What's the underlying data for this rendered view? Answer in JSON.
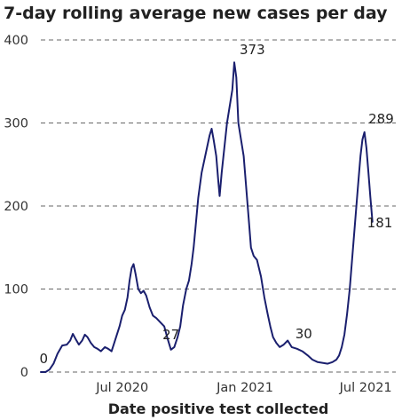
{
  "chart_data": {
    "type": "line",
    "title": "7-day rolling average new cases per day",
    "xlabel": "Date positive test collected",
    "ylabel": "",
    "ylim": [
      0,
      400
    ],
    "xlim": [
      "2020-03-01",
      "2021-08-15"
    ],
    "yticks": [
      0,
      100,
      200,
      300,
      400
    ],
    "xticks": [
      {
        "date": "2020-07-01",
        "label": "Jul 2020"
      },
      {
        "date": "2021-01-01",
        "label": "Jan 2021"
      },
      {
        "date": "2021-07-01",
        "label": "Jul 2021"
      }
    ],
    "grid": true,
    "colors": {
      "line": "#1a1f6e",
      "provisional": "#8a8fb5"
    },
    "annotations": [
      {
        "date": "2020-03-08",
        "value": 0,
        "label": "0"
      },
      {
        "date": "2020-09-12",
        "value": 27,
        "label": "27"
      },
      {
        "date": "2021-03-12",
        "value": 30,
        "label": "30"
      },
      {
        "date": "2021-01-12",
        "value": 373,
        "label": "373"
      },
      {
        "date": "2021-08-01",
        "value": 289,
        "label": "289"
      },
      {
        "date": "2021-08-07",
        "value": 181,
        "label": "181"
      }
    ],
    "series": [
      {
        "values": [
          [
            "2020-03-01",
            0
          ],
          [
            "2020-03-08",
            0
          ],
          [
            "2020-03-14",
            3
          ],
          [
            "2020-03-20",
            10
          ],
          [
            "2020-03-26",
            22
          ],
          [
            "2020-04-02",
            32
          ],
          [
            "2020-04-09",
            33
          ],
          [
            "2020-04-14",
            38
          ],
          [
            "2020-04-18",
            46
          ],
          [
            "2020-04-22",
            40
          ],
          [
            "2020-04-27",
            33
          ],
          [
            "2020-05-02",
            38
          ],
          [
            "2020-05-06",
            45
          ],
          [
            "2020-05-10",
            42
          ],
          [
            "2020-05-15",
            35
          ],
          [
            "2020-05-20",
            30
          ],
          [
            "2020-05-25",
            28
          ],
          [
            "2020-05-30",
            25
          ],
          [
            "2020-06-05",
            30
          ],
          [
            "2020-06-10",
            28
          ],
          [
            "2020-06-15",
            25
          ],
          [
            "2020-06-19",
            35
          ],
          [
            "2020-06-23",
            45
          ],
          [
            "2020-06-27",
            55
          ],
          [
            "2020-07-01",
            68
          ],
          [
            "2020-07-05",
            75
          ],
          [
            "2020-07-09",
            90
          ],
          [
            "2020-07-12",
            110
          ],
          [
            "2020-07-15",
            125
          ],
          [
            "2020-07-18",
            130
          ],
          [
            "2020-07-21",
            118
          ],
          [
            "2020-07-25",
            100
          ],
          [
            "2020-07-29",
            95
          ],
          [
            "2020-08-02",
            98
          ],
          [
            "2020-08-06",
            92
          ],
          [
            "2020-08-11",
            78
          ],
          [
            "2020-08-16",
            68
          ],
          [
            "2020-08-21",
            65
          ],
          [
            "2020-08-27",
            60
          ],
          [
            "2020-09-02",
            55
          ],
          [
            "2020-09-07",
            40
          ],
          [
            "2020-09-12",
            27
          ],
          [
            "2020-09-17",
            30
          ],
          [
            "2020-09-22",
            42
          ],
          [
            "2020-09-26",
            55
          ],
          [
            "2020-09-30",
            80
          ],
          [
            "2020-10-05",
            100
          ],
          [
            "2020-10-09",
            110
          ],
          [
            "2020-10-13",
            130
          ],
          [
            "2020-10-16",
            150
          ],
          [
            "2020-10-19",
            175
          ],
          [
            "2020-10-23",
            210
          ],
          [
            "2020-10-28",
            240
          ],
          [
            "2020-11-01",
            255
          ],
          [
            "2020-11-05",
            270
          ],
          [
            "2020-11-09",
            285
          ],
          [
            "2020-11-12",
            293
          ],
          [
            "2020-11-15",
            280
          ],
          [
            "2020-11-19",
            260
          ],
          [
            "2020-11-22",
            230
          ],
          [
            "2020-11-24",
            212
          ],
          [
            "2020-11-27",
            240
          ],
          [
            "2020-12-01",
            270
          ],
          [
            "2020-12-05",
            300
          ],
          [
            "2020-12-09",
            320
          ],
          [
            "2020-12-13",
            340
          ],
          [
            "2020-12-16",
            373
          ],
          [
            "2020-12-19",
            355
          ],
          [
            "2020-12-22",
            300
          ],
          [
            "2020-12-26",
            280
          ],
          [
            "2020-12-30",
            260
          ],
          [
            "2021-01-03",
            220
          ],
          [
            "2021-01-07",
            180
          ],
          [
            "2021-01-10",
            150
          ],
          [
            "2021-01-14",
            140
          ],
          [
            "2021-01-19",
            135
          ],
          [
            "2021-01-25",
            115
          ],
          [
            "2021-01-30",
            90
          ],
          [
            "2021-02-04",
            70
          ],
          [
            "2021-02-08",
            55
          ],
          [
            "2021-02-12",
            42
          ],
          [
            "2021-02-17",
            35
          ],
          [
            "2021-02-22",
            30
          ],
          [
            "2021-02-28",
            33
          ],
          [
            "2021-03-06",
            38
          ],
          [
            "2021-03-12",
            30
          ],
          [
            "2021-03-20",
            28
          ],
          [
            "2021-03-28",
            25
          ],
          [
            "2021-04-05",
            20
          ],
          [
            "2021-04-12",
            15
          ],
          [
            "2021-04-20",
            12
          ],
          [
            "2021-04-28",
            11
          ],
          [
            "2021-05-05",
            10
          ],
          [
            "2021-05-12",
            12
          ],
          [
            "2021-05-18",
            15
          ],
          [
            "2021-05-22",
            20
          ],
          [
            "2021-05-26",
            30
          ],
          [
            "2021-05-30",
            45
          ],
          [
            "2021-06-03",
            70
          ],
          [
            "2021-06-07",
            100
          ],
          [
            "2021-06-11",
            140
          ],
          [
            "2021-06-15",
            180
          ],
          [
            "2021-06-19",
            220
          ],
          [
            "2021-06-23",
            260
          ],
          [
            "2021-06-26",
            280
          ],
          [
            "2021-06-29",
            289
          ],
          [
            "2021-07-02",
            270
          ],
          [
            "2021-07-05",
            240
          ],
          [
            "2021-07-08",
            210
          ],
          [
            "2021-07-11",
            181
          ]
        ]
      }
    ]
  }
}
